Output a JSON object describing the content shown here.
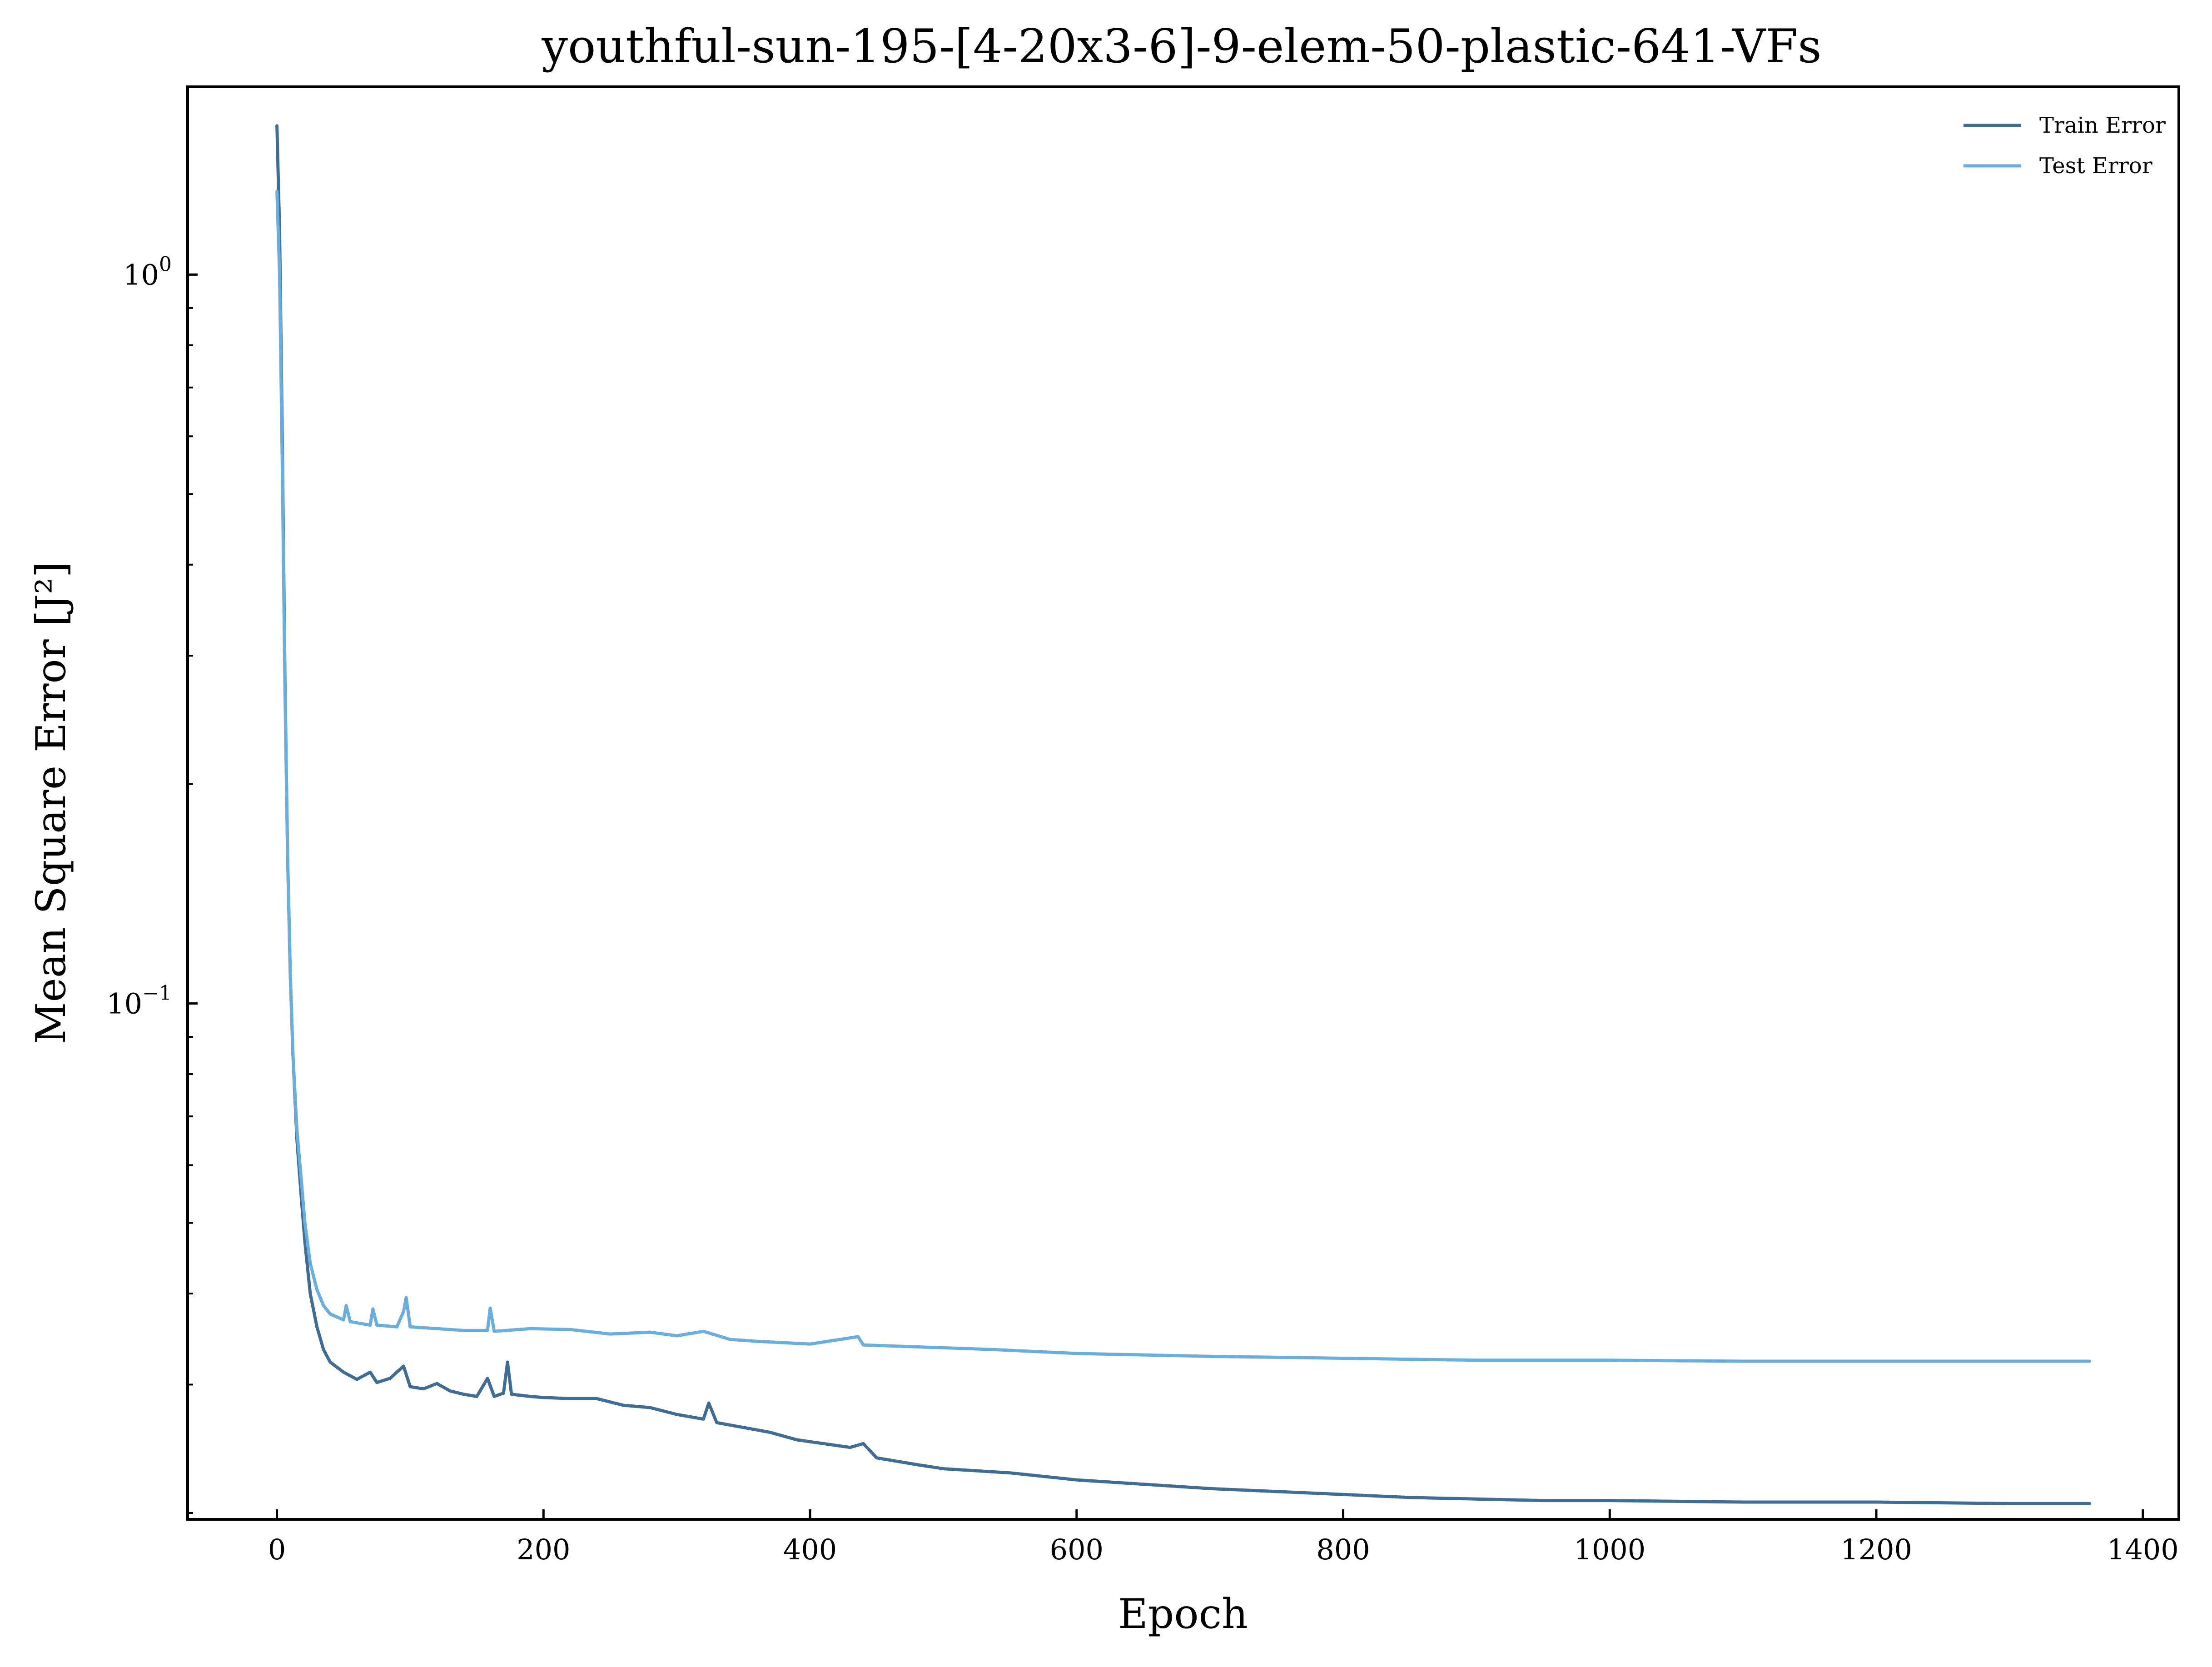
{
  "chart_data": {
    "type": "line",
    "title": "youthful-sun-195-[4-20x3-6]-9-elem-50-plastic-641-VFs",
    "xlabel": "Epoch",
    "ylabel": "Mean Square Error [J²]",
    "xlim": [
      -67,
      1427
    ],
    "ylim": [
      0.0196,
      1.81
    ],
    "yscale": "log",
    "grid": false,
    "legend_position": "top-right",
    "x_ticks": [
      0,
      200,
      400,
      600,
      800,
      1000,
      1200,
      1400
    ],
    "x_tick_labels": [
      "0",
      "200",
      "400",
      "600",
      "800",
      "1000",
      "1200",
      "1400"
    ],
    "y_ticks": [
      1,
      0.1
    ],
    "y_tick_labels": [
      {
        "base": "10",
        "exp": "0"
      },
      {
        "base": "10",
        "exp": "−1"
      }
    ],
    "series": [
      {
        "name": "Train Error",
        "color": "#3f6d96",
        "points": [
          [
            0,
            1.6
          ],
          [
            2,
            1.15
          ],
          [
            4,
            0.6
          ],
          [
            6,
            0.28
          ],
          [
            8,
            0.16
          ],
          [
            10,
            0.11
          ],
          [
            12,
            0.085
          ],
          [
            15,
            0.065
          ],
          [
            18,
            0.055
          ],
          [
            21,
            0.047
          ],
          [
            25,
            0.04
          ],
          [
            30,
            0.036
          ],
          [
            35,
            0.0335
          ],
          [
            40,
            0.0322
          ],
          [
            50,
            0.0312
          ],
          [
            60,
            0.0305
          ],
          [
            70,
            0.0312
          ],
          [
            75,
            0.0302
          ],
          [
            85,
            0.0306
          ],
          [
            90,
            0.0312
          ],
          [
            95,
            0.0318
          ],
          [
            100,
            0.0298
          ],
          [
            110,
            0.0296
          ],
          [
            120,
            0.0301
          ],
          [
            130,
            0.0294
          ],
          [
            140,
            0.0291
          ],
          [
            150,
            0.0289
          ],
          [
            158,
            0.0306
          ],
          [
            163,
            0.0289
          ],
          [
            170,
            0.0292
          ],
          [
            173,
            0.0322
          ],
          [
            176,
            0.0291
          ],
          [
            190,
            0.0289
          ],
          [
            200,
            0.0288
          ],
          [
            220,
            0.0287
          ],
          [
            240,
            0.0287
          ],
          [
            260,
            0.0281
          ],
          [
            280,
            0.0279
          ],
          [
            300,
            0.0273
          ],
          [
            320,
            0.0269
          ],
          [
            324,
            0.0283
          ],
          [
            330,
            0.0266
          ],
          [
            350,
            0.0262
          ],
          [
            370,
            0.0258
          ],
          [
            390,
            0.0252
          ],
          [
            410,
            0.0249
          ],
          [
            430,
            0.0246
          ],
          [
            440,
            0.0249
          ],
          [
            450,
            0.0238
          ],
          [
            480,
            0.0233
          ],
          [
            500,
            0.023
          ],
          [
            550,
            0.0227
          ],
          [
            600,
            0.0222
          ],
          [
            650,
            0.0219
          ],
          [
            700,
            0.0216
          ],
          [
            750,
            0.0214
          ],
          [
            800,
            0.0212
          ],
          [
            850,
            0.021
          ],
          [
            900,
            0.0209
          ],
          [
            950,
            0.0208
          ],
          [
            1000,
            0.0208
          ],
          [
            1100,
            0.0207
          ],
          [
            1200,
            0.0207
          ],
          [
            1300,
            0.0206
          ],
          [
            1360,
            0.0206
          ]
        ]
      },
      {
        "name": "Test Error",
        "color": "#6aaee0",
        "points": [
          [
            0,
            1.3
          ],
          [
            2,
            1.0
          ],
          [
            4,
            0.55
          ],
          [
            6,
            0.27
          ],
          [
            8,
            0.16
          ],
          [
            10,
            0.11
          ],
          [
            12,
            0.085
          ],
          [
            15,
            0.067
          ],
          [
            18,
            0.058
          ],
          [
            21,
            0.05
          ],
          [
            25,
            0.044
          ],
          [
            30,
            0.0405
          ],
          [
            35,
            0.0385
          ],
          [
            40,
            0.0375
          ],
          [
            50,
            0.0368
          ],
          [
            52,
            0.0385
          ],
          [
            55,
            0.0366
          ],
          [
            70,
            0.0362
          ],
          [
            72,
            0.0381
          ],
          [
            75,
            0.0362
          ],
          [
            90,
            0.036
          ],
          [
            95,
            0.0378
          ],
          [
            97,
            0.0395
          ],
          [
            100,
            0.036
          ],
          [
            120,
            0.0358
          ],
          [
            140,
            0.0356
          ],
          [
            158,
            0.0356
          ],
          [
            160,
            0.0382
          ],
          [
            163,
            0.0355
          ],
          [
            190,
            0.0358
          ],
          [
            220,
            0.0357
          ],
          [
            250,
            0.0352
          ],
          [
            280,
            0.0354
          ],
          [
            300,
            0.035
          ],
          [
            320,
            0.0355
          ],
          [
            340,
            0.0346
          ],
          [
            360,
            0.0344
          ],
          [
            400,
            0.0341
          ],
          [
            436,
            0.0349
          ],
          [
            440,
            0.034
          ],
          [
            500,
            0.0337
          ],
          [
            540,
            0.0335
          ],
          [
            600,
            0.0331
          ],
          [
            700,
            0.0328
          ],
          [
            800,
            0.0326
          ],
          [
            900,
            0.0324
          ],
          [
            1000,
            0.0324
          ],
          [
            1100,
            0.0323
          ],
          [
            1200,
            0.0323
          ],
          [
            1300,
            0.0323
          ],
          [
            1360,
            0.0323
          ]
        ]
      }
    ]
  }
}
